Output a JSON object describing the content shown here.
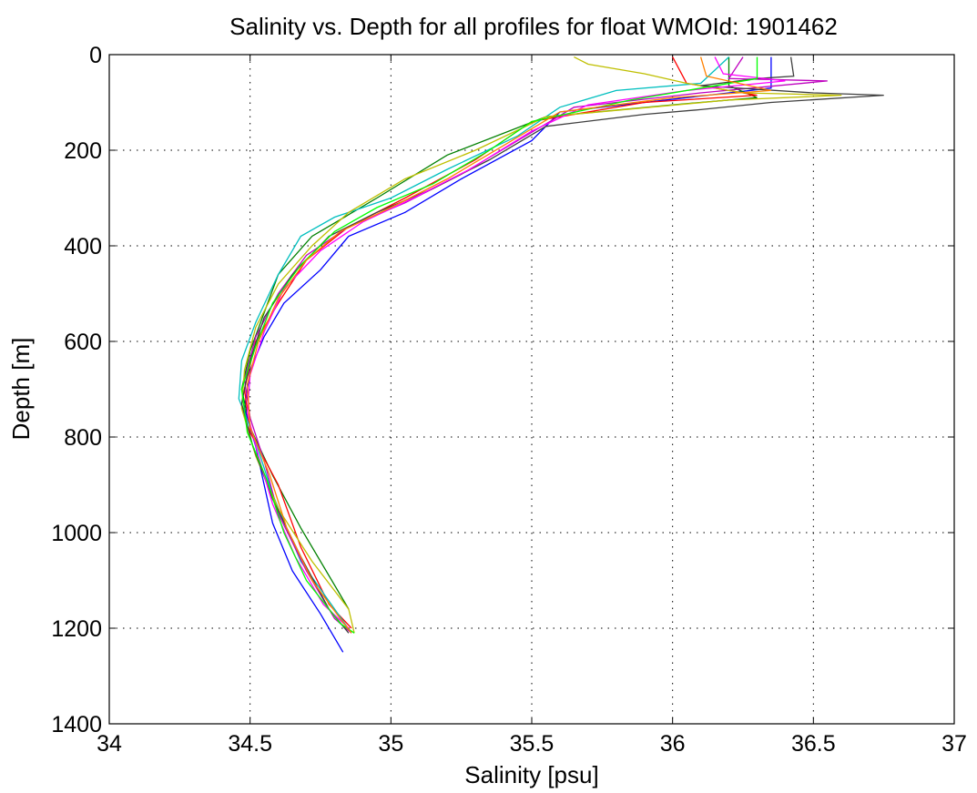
{
  "chart_data": {
    "type": "line",
    "title": "Salinity vs. Depth for all profiles for float WMOId: 1901462",
    "xlabel": "Salinity [psu]",
    "ylabel": "Depth [m]",
    "xlim": [
      34,
      37
    ],
    "ylim": [
      0,
      1400
    ],
    "y_reversed": true,
    "grid": true,
    "legend": "none",
    "xticks": [
      "34",
      "34.5",
      "35",
      "35.5",
      "36",
      "36.5",
      "37"
    ],
    "yticks": [
      "0",
      "200",
      "400",
      "600",
      "800",
      "1000",
      "1200",
      "1400"
    ],
    "series": [
      {
        "color": "#0000ff",
        "points": [
          [
            36.35,
            5
          ],
          [
            36.35,
            70
          ],
          [
            36.05,
            90
          ],
          [
            35.6,
            120
          ],
          [
            35.5,
            180
          ],
          [
            35.25,
            260
          ],
          [
            35.05,
            330
          ],
          [
            34.85,
            380
          ],
          [
            34.75,
            450
          ],
          [
            34.62,
            520
          ],
          [
            34.55,
            590
          ],
          [
            34.5,
            660
          ],
          [
            34.48,
            740
          ],
          [
            34.52,
            820
          ],
          [
            34.55,
            900
          ],
          [
            34.58,
            980
          ],
          [
            34.65,
            1080
          ],
          [
            34.75,
            1170
          ],
          [
            34.83,
            1250
          ]
        ]
      },
      {
        "color": "#008000",
        "points": [
          [
            36.2,
            5
          ],
          [
            36.2,
            65
          ],
          [
            36.3,
            90
          ],
          [
            36.0,
            105
          ],
          [
            35.55,
            130
          ],
          [
            35.2,
            210
          ],
          [
            34.95,
            300
          ],
          [
            34.72,
            380
          ],
          [
            34.6,
            460
          ],
          [
            34.55,
            540
          ],
          [
            34.5,
            620
          ],
          [
            34.47,
            700
          ],
          [
            34.5,
            780
          ],
          [
            34.58,
            880
          ],
          [
            34.68,
            990
          ],
          [
            34.8,
            1110
          ],
          [
            34.85,
            1160
          ]
        ]
      },
      {
        "color": "#ff0000",
        "points": [
          [
            36.0,
            5
          ],
          [
            36.05,
            60
          ],
          [
            36.3,
            85
          ],
          [
            35.9,
            100
          ],
          [
            35.5,
            140
          ],
          [
            35.3,
            220
          ],
          [
            35.05,
            300
          ],
          [
            34.85,
            360
          ],
          [
            34.7,
            430
          ],
          [
            34.6,
            520
          ],
          [
            34.52,
            600
          ],
          [
            34.48,
            700
          ],
          [
            34.5,
            790
          ],
          [
            34.6,
            900
          ],
          [
            34.68,
            1030
          ],
          [
            34.78,
            1150
          ],
          [
            34.86,
            1200
          ]
        ]
      },
      {
        "color": "#00bfbf",
        "points": [
          [
            36.2,
            5
          ],
          [
            36.1,
            60
          ],
          [
            35.8,
            75
          ],
          [
            35.6,
            110
          ],
          [
            35.45,
            170
          ],
          [
            35.2,
            240
          ],
          [
            35.0,
            300
          ],
          [
            34.8,
            340
          ],
          [
            34.68,
            380
          ],
          [
            34.6,
            460
          ],
          [
            34.52,
            560
          ],
          [
            34.47,
            640
          ],
          [
            34.46,
            720
          ],
          [
            34.52,
            810
          ],
          [
            34.58,
            920
          ],
          [
            34.68,
            1060
          ],
          [
            34.8,
            1160
          ],
          [
            34.86,
            1210
          ]
        ]
      },
      {
        "color": "#bf00bf",
        "points": [
          [
            36.25,
            5
          ],
          [
            36.2,
            50
          ],
          [
            36.55,
            55
          ],
          [
            36.1,
            80
          ],
          [
            35.65,
            110
          ],
          [
            35.45,
            180
          ],
          [
            35.25,
            250
          ],
          [
            35.05,
            310
          ],
          [
            34.85,
            360
          ],
          [
            34.7,
            420
          ],
          [
            34.6,
            500
          ],
          [
            34.52,
            590
          ],
          [
            34.48,
            680
          ],
          [
            34.5,
            760
          ],
          [
            34.55,
            850
          ],
          [
            34.6,
            960
          ],
          [
            34.7,
            1080
          ],
          [
            34.8,
            1180
          ],
          [
            34.86,
            1210
          ]
        ]
      },
      {
        "color": "#bfbf00",
        "points": [
          [
            35.65,
            5
          ],
          [
            35.7,
            20
          ],
          [
            35.9,
            40
          ],
          [
            36.05,
            60
          ],
          [
            36.25,
            80
          ],
          [
            36.6,
            85
          ],
          [
            36.2,
            95
          ],
          [
            35.55,
            130
          ],
          [
            35.3,
            200
          ],
          [
            35.05,
            260
          ],
          [
            34.85,
            330
          ],
          [
            34.72,
            400
          ],
          [
            34.6,
            480
          ],
          [
            34.52,
            570
          ],
          [
            34.48,
            660
          ],
          [
            34.47,
            740
          ],
          [
            34.52,
            840
          ],
          [
            34.6,
            950
          ],
          [
            34.72,
            1060
          ],
          [
            34.85,
            1160
          ],
          [
            34.87,
            1210
          ]
        ]
      },
      {
        "color": "#404040",
        "points": [
          [
            36.42,
            5
          ],
          [
            36.43,
            45
          ],
          [
            36.3,
            50
          ],
          [
            36.1,
            65
          ],
          [
            36.5,
            80
          ],
          [
            36.75,
            85
          ],
          [
            36.35,
            100
          ],
          [
            36.1,
            115
          ],
          [
            35.9,
            125
          ],
          [
            35.55,
            150
          ],
          [
            35.35,
            220
          ],
          [
            35.15,
            280
          ],
          [
            34.95,
            330
          ],
          [
            34.78,
            380
          ],
          [
            34.65,
            460
          ],
          [
            34.55,
            550
          ],
          [
            34.5,
            640
          ],
          [
            34.47,
            730
          ],
          [
            34.51,
            820
          ],
          [
            34.58,
            930
          ],
          [
            34.68,
            1050
          ],
          [
            34.78,
            1160
          ],
          [
            34.85,
            1210
          ]
        ]
      },
      {
        "color": "#ff00ff",
        "points": [
          [
            36.15,
            5
          ],
          [
            36.18,
            40
          ],
          [
            36.4,
            55
          ],
          [
            36.05,
            75
          ],
          [
            35.7,
            105
          ],
          [
            35.5,
            160
          ],
          [
            35.28,
            240
          ],
          [
            35.08,
            300
          ],
          [
            34.9,
            350
          ],
          [
            34.75,
            410
          ],
          [
            34.62,
            490
          ],
          [
            34.55,
            580
          ],
          [
            34.5,
            670
          ],
          [
            34.49,
            750
          ],
          [
            34.53,
            840
          ],
          [
            34.58,
            940
          ],
          [
            34.66,
            1050
          ],
          [
            34.76,
            1150
          ],
          [
            34.85,
            1200
          ]
        ]
      },
      {
        "color": "#00ff00",
        "points": [
          [
            36.3,
            5
          ],
          [
            36.3,
            50
          ],
          [
            36.1,
            70
          ],
          [
            35.85,
            95
          ],
          [
            35.5,
            140
          ],
          [
            35.35,
            200
          ],
          [
            35.15,
            270
          ],
          [
            34.95,
            320
          ],
          [
            34.8,
            370
          ],
          [
            34.68,
            440
          ],
          [
            34.58,
            520
          ],
          [
            34.52,
            610
          ],
          [
            34.47,
            700
          ],
          [
            34.49,
            790
          ],
          [
            34.56,
            890
          ],
          [
            34.62,
            1000
          ],
          [
            34.7,
            1100
          ],
          [
            34.82,
            1190
          ],
          [
            34.87,
            1210
          ]
        ]
      },
      {
        "color": "#ff8000",
        "points": [
          [
            36.1,
            5
          ],
          [
            36.12,
            45
          ],
          [
            36.35,
            75
          ],
          [
            36.0,
            90
          ],
          [
            35.6,
            120
          ],
          [
            35.4,
            190
          ],
          [
            35.2,
            260
          ],
          [
            35.0,
            320
          ],
          [
            34.82,
            370
          ],
          [
            34.7,
            430
          ],
          [
            34.6,
            510
          ],
          [
            34.53,
            600
          ],
          [
            34.49,
            690
          ],
          [
            34.5,
            780
          ],
          [
            34.57,
            880
          ],
          [
            34.63,
            990
          ],
          [
            34.72,
            1100
          ],
          [
            34.82,
            1180
          ],
          [
            34.86,
            1210
          ]
        ]
      }
    ]
  }
}
